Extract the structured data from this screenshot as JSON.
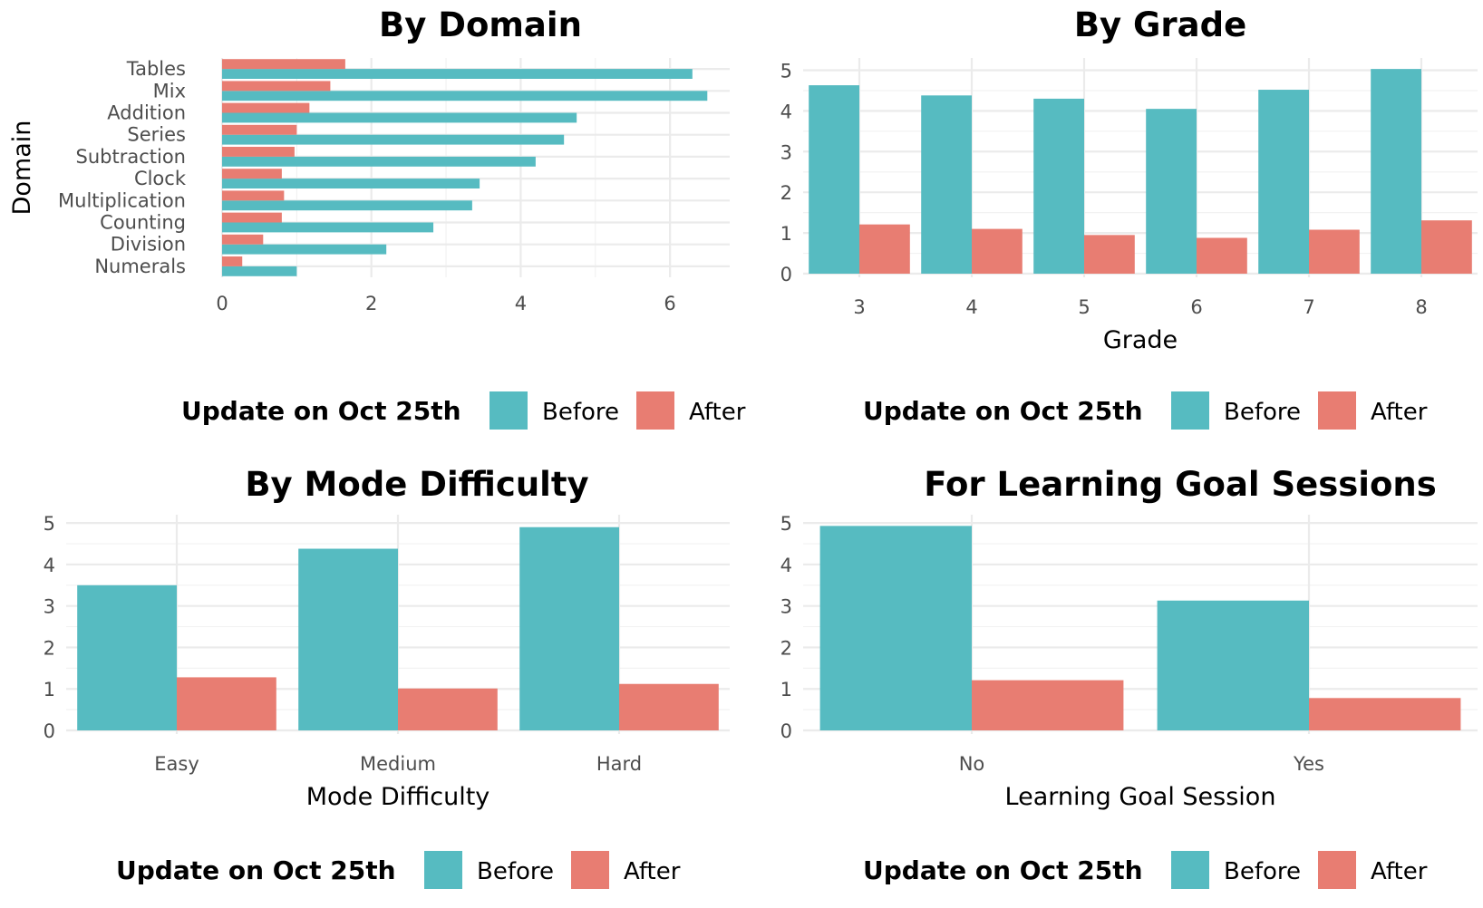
{
  "colors": {
    "before": "#56BBC1",
    "after": "#E87D72"
  },
  "legend": {
    "title": "Update on Oct 25th",
    "before_label": "Before",
    "after_label": "After"
  },
  "chart_data": [
    {
      "type": "bar",
      "orientation": "horizontal",
      "title": "By Domain",
      "xlabel": "",
      "ylabel": "Domain",
      "xlim": [
        0,
        6.8
      ],
      "xticks": [
        "0",
        "2",
        "4",
        "6"
      ],
      "categories": [
        "Tables",
        "Mix",
        "Addition",
        "Series",
        "Subtraction",
        "Clock",
        "Multiplication",
        "Counting",
        "Division",
        "Numerals"
      ],
      "series": [
        {
          "name": "Before",
          "values": [
            6.3,
            6.5,
            4.75,
            4.58,
            4.2,
            3.45,
            3.35,
            2.83,
            2.2,
            1.0
          ]
        },
        {
          "name": "After",
          "values": [
            1.65,
            1.45,
            1.17,
            1.0,
            0.97,
            0.8,
            0.83,
            0.8,
            0.55,
            0.27
          ]
        }
      ],
      "legend_position": "bottom"
    },
    {
      "type": "bar",
      "title": "By Grade",
      "xlabel": "Grade",
      "ylabel": "",
      "ylim": [
        0,
        5.3
      ],
      "yticks": [
        "0",
        "1",
        "2",
        "3",
        "4",
        "5"
      ],
      "categories": [
        "3",
        "4",
        "5",
        "6",
        "7",
        "8"
      ],
      "series": [
        {
          "name": "Before",
          "values": [
            4.63,
            4.38,
            4.3,
            4.05,
            4.52,
            5.03
          ]
        },
        {
          "name": "After",
          "values": [
            1.21,
            1.1,
            0.95,
            0.88,
            1.08,
            1.31
          ]
        }
      ],
      "legend_position": "bottom"
    },
    {
      "type": "bar",
      "title": "By Mode Difficulty",
      "xlabel": "Mode Difficulty",
      "ylabel": "",
      "ylim": [
        0,
        5.2
      ],
      "yticks": [
        "0",
        "1",
        "2",
        "3",
        "4",
        "5"
      ],
      "categories": [
        "Easy",
        "Medium",
        "Hard"
      ],
      "series": [
        {
          "name": "Before",
          "values": [
            3.5,
            4.38,
            4.9
          ]
        },
        {
          "name": "After",
          "values": [
            1.28,
            1.01,
            1.12
          ]
        }
      ],
      "legend_position": "bottom"
    },
    {
      "type": "bar",
      "title": "For Learning Goal Sessions",
      "xlabel": "Learning Goal Session",
      "ylabel": "",
      "ylim": [
        0,
        5.2
      ],
      "yticks": [
        "0",
        "1",
        "2",
        "3",
        "4",
        "5"
      ],
      "categories": [
        "No",
        "Yes"
      ],
      "series": [
        {
          "name": "Before",
          "values": [
            4.93,
            3.13
          ]
        },
        {
          "name": "After",
          "values": [
            1.21,
            0.78
          ]
        }
      ],
      "legend_position": "bottom"
    }
  ]
}
